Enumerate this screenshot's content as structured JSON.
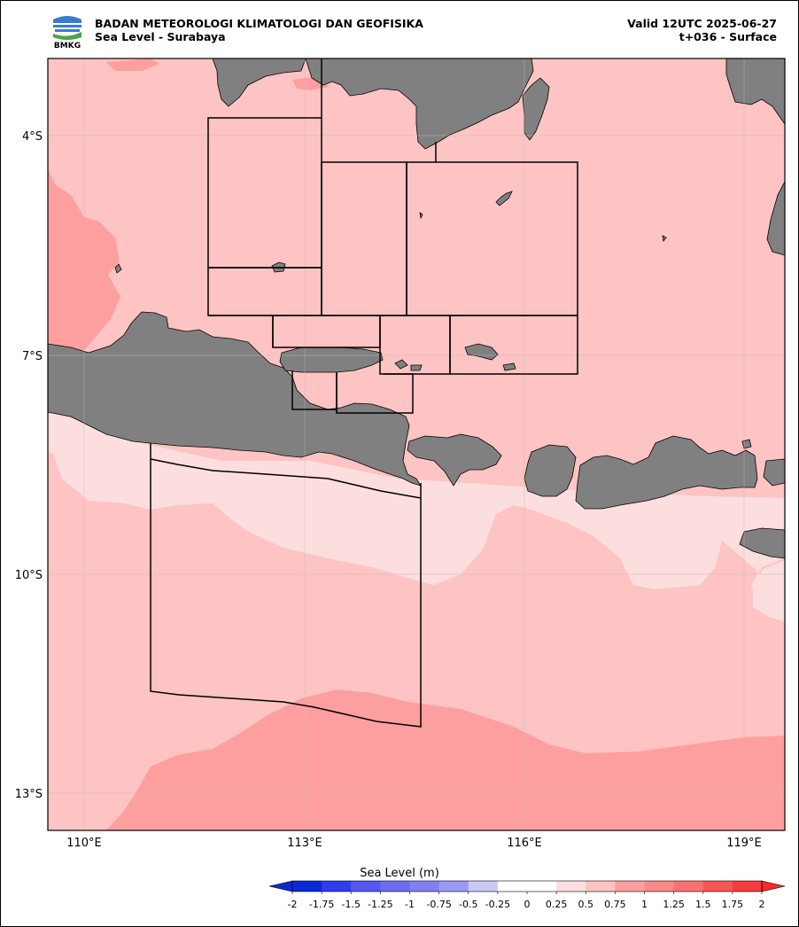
{
  "header": {
    "agency": "BADAN METEOROLOGI KLIMATOLOGI DAN GEOFISIKA",
    "product": "Sea Level - Surabaya",
    "valid": "Valid 12UTC 2025-06-27",
    "lead": "t+036 - Surface",
    "logo_text": "BMKG"
  },
  "axes": {
    "x_ticks": [
      "110°E",
      "113°E",
      "116°E",
      "119°E"
    ],
    "y_ticks": [
      "4°S",
      "7°S",
      "10°S",
      "13°S"
    ]
  },
  "colorbar": {
    "label": "Sea Level (m)",
    "ticks": [
      "-2",
      "-1.75",
      "-1.5",
      "-1.25",
      "-1",
      "-0.75",
      "-0.5",
      "-0.25",
      "0",
      "0.25",
      "0.5",
      "0.75",
      "1",
      "1.25",
      "1.5",
      "1.75",
      "2"
    ],
    "colors": [
      "#0a2ad6",
      "#2f3cf0",
      "#5656f4",
      "#6c6cf2",
      "#8080f2",
      "#9a9af5",
      "#c9c9f8",
      "#ffffff",
      "#ffffff",
      "#fddede",
      "#fec3c3",
      "#fe9f9f",
      "#fd8888",
      "#fb7070",
      "#f85555",
      "#f83b3b"
    ],
    "under_color": "#0a2ad6",
    "over_color": "#fb2828"
  },
  "colors": {
    "land": "#808080",
    "sea_level_light": "#fddede",
    "sea_level_mid": "#fec3c3",
    "sea_level_high": "#fe9f9f"
  }
}
